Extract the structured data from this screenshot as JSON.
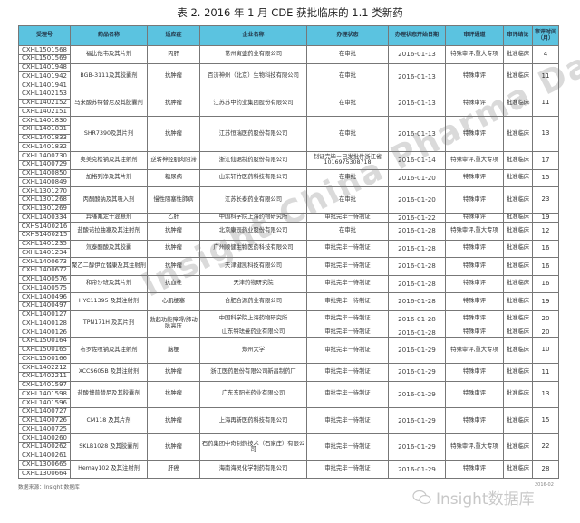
{
  "title": "表 2. 2016 年 1 月 CDE 获批临床的 1.1 类新药",
  "header_color": "#5bc3e0",
  "columns": [
    "受理号",
    "药品名称",
    "适应症",
    "企业名称",
    "办理状态",
    "办理状态开始日期",
    "审评通道",
    "审评结论",
    "审评时间（月）"
  ],
  "groups": [
    {
      "ids": [
        "CXHL1501568",
        "CXHL1501569"
      ],
      "drug": "福比他韦及其片剂",
      "indication": "丙肝",
      "companies": [
        {
          "name": "常州寅盛药业有限公司",
          "rows": 2,
          "status": "在审批",
          "date": "2016-01-13",
          "channel": "特殊审评,重大专项",
          "conclusion": "批准临床",
          "months": "4"
        }
      ]
    },
    {
      "ids": [
        "CXHL1401948",
        "CXHL1401942",
        "CXHL1401941"
      ],
      "drug": "BGB-3111及其胶囊剂",
      "indication": "抗肿瘤",
      "companies": [
        {
          "name": "百济神州（北京）生物科技有限公司",
          "rows": 3,
          "status": "在审批",
          "date": "2016-01-13",
          "channel": "特殊审评",
          "conclusion": "批准临床",
          "months": "11"
        }
      ]
    },
    {
      "ids": [
        "CXHL1402153",
        "CXHL1402152",
        "CXHL1402151"
      ],
      "drug": "马来酸苏特替尼及其胶囊剂",
      "indication": "抗肿瘤",
      "companies": [
        {
          "name": "江苏苏中药业集团股份有限公司",
          "rows": 3,
          "status": "在审批",
          "date": "2016-01-13",
          "channel": "特殊审评",
          "conclusion": "批准临床",
          "months": "11"
        }
      ]
    },
    {
      "ids": [
        "CXHL1401830",
        "CXHL1401831",
        "CXHL1401833",
        "CXHL1401832"
      ],
      "drug": "SHR7390及其片剂",
      "indication": "抗肿瘤",
      "companies": [
        {
          "name": "江苏恒瑞医药股份有限公司",
          "rows": 4,
          "status": "在审批",
          "date": "2016-01-13",
          "channel": "特殊审评",
          "conclusion": "批准临床",
          "months": "13"
        }
      ]
    },
    {
      "ids": [
        "CXHL1400730",
        "CXHL1400729"
      ],
      "drug": "奥美克松钠及其注射剂",
      "indication": "逆转神经肌肉阻滞",
      "companies": [
        {
          "name": "浙江仙琚制药股份有限公司",
          "rows": 2,
          "status": "制证完毕－已发批件浙江省1016975308718",
          "date": "2016-01-14",
          "channel": "特殊审评,重大专项",
          "conclusion": "批准临床",
          "months": "17"
        }
      ]
    },
    {
      "ids": [
        "CXHL1400850",
        "CXHL1400849"
      ],
      "drug": "加格列净及其片剂",
      "indication": "糖尿病",
      "companies": [
        {
          "name": "山东轩竹医药科技有限公司",
          "rows": 2,
          "status": "在审批",
          "date": "2016-01-20",
          "channel": "特殊审评",
          "conclusion": "批准临床",
          "months": "15"
        }
      ]
    },
    {
      "ids": [
        "CXHL1301270",
        "CXHL1301268",
        "CXHL1301269"
      ],
      "drug": "丙酮酸钠及其吸入剂",
      "indication": "慢性阻塞性肺病",
      "companies": [
        {
          "name": "江苏长泰药业有限公司",
          "rows": 3,
          "status": "在审批",
          "date": "2016-01-20",
          "channel": "特殊审评",
          "conclusion": "批准临床",
          "months": "23"
        }
      ]
    },
    {
      "ids": [
        "CXHL1400334"
      ],
      "drug": "异噻氟定干混悬剂",
      "indication": "乙肝",
      "companies": [
        {
          "name": "中国科学院上海药物研究所",
          "rows": 1,
          "status": "审批完毕－待制证",
          "date": "2016-01-22",
          "channel": "特殊审评",
          "conclusion": "批准临床",
          "months": "19"
        }
      ]
    },
    {
      "ids": [
        "CXHS1400216",
        "CXHS1400215"
      ],
      "drug": "盐酸诺拉曲塞及其注射剂",
      "indication": "抗肿瘤",
      "companies": [
        {
          "name": "北京康辰药业股份有限公司",
          "rows": 2,
          "status": "在审批",
          "date": "2016-01-28",
          "channel": "特殊审评,重大专项",
          "conclusion": "批准临床",
          "months": "12"
        }
      ]
    },
    {
      "ids": [
        "CXHL1401235",
        "CXHL1401234"
      ],
      "drug": "氘泰酮酸及其胶囊",
      "indication": "抗肿瘤",
      "companies": [
        {
          "name": "广州顺健生物医药科技有限公司",
          "rows": 2,
          "status": "审批完毕－待制证",
          "date": "2016-01-28",
          "channel": "特殊审评",
          "conclusion": "批准临床",
          "months": "16"
        }
      ]
    },
    {
      "ids": [
        "CXHL1400673",
        "CXHL1400672"
      ],
      "drug": "聚乙二醇伊立替康及其注射剂",
      "indication": "抗肿瘤",
      "companies": [
        {
          "name": "天津键凯科技有限公司",
          "rows": 2,
          "status": "审批完毕－待制证",
          "date": "2016-01-28",
          "channel": "特殊审评",
          "conclusion": "批准临床",
          "months": "16"
        }
      ]
    },
    {
      "ids": [
        "CXHL1400576",
        "CXHL1400575"
      ],
      "drug": "和帝沙班及其片剂",
      "indication": "抗血栓",
      "companies": [
        {
          "name": "天津药物研究院",
          "rows": 2,
          "status": "审批完毕－待制证",
          "date": "2016-01-28",
          "channel": "特殊审评",
          "conclusion": "批准临床",
          "months": "16"
        }
      ]
    },
    {
      "ids": [
        "CXHL1400496",
        "CXHL1400497"
      ],
      "drug": "HYC11395 及其注射剂",
      "indication": "心肌梗塞",
      "companies": [
        {
          "name": "合肥合源药业有限公司",
          "rows": 2,
          "status": "审批完毕－待制证",
          "date": "2016-01-28",
          "channel": "特殊审评",
          "conclusion": "批准临床",
          "months": "19"
        }
      ]
    },
    {
      "ids": [
        "CXHL1400127",
        "CXHL1400128",
        "CXHL1400126"
      ],
      "drug": "TPN171H 及其片剂",
      "indication": "勃起功能障碍/肺动脉高压",
      "companies": [
        {
          "name": "中国科学院上海药物研究所",
          "rows": 2,
          "status": "审批完毕－待制证",
          "date": "2016-01-28",
          "channel": "特殊审评",
          "conclusion": "批准临床",
          "months": "20"
        },
        {
          "name": "山东特珐曼药业有限公司",
          "rows": 1,
          "status": "审批完毕－待制证",
          "date": "2016-01-28",
          "channel": "特殊审评",
          "conclusion": "批准临床",
          "months": "20"
        }
      ]
    },
    {
      "ids": [
        "CXHL1500164",
        "CXHL1500165",
        "CXHL1500166"
      ],
      "drug": "布罗佐喷钠及其注射剂",
      "indication": "脑梗",
      "companies": [
        {
          "name": "郑州大学",
          "rows": 3,
          "status": "审批完毕－待制证",
          "date": "2016-01-29",
          "channel": "特殊审评,重大专项",
          "conclusion": "批准临床",
          "months": "10"
        }
      ]
    },
    {
      "ids": [
        "CXHL1402212",
        "CXHL1402211"
      ],
      "drug": "XCCS605B 及其注射剂",
      "indication": "抗肿瘤",
      "companies": [
        {
          "name": "浙江医药股份有限公司新昌制药厂",
          "rows": 2,
          "status": "审批完毕－待制证",
          "date": "2016-01-29",
          "channel": "特殊审评",
          "conclusion": "批准临床",
          "months": "11"
        }
      ]
    },
    {
      "ids": [
        "CXHL1401597",
        "CXHL1401598",
        "CXHL1401596"
      ],
      "drug": "盐酸博普替尼及其胶囊剂",
      "indication": "抗肿瘤",
      "companies": [
        {
          "name": "广东东阳光药业有限公司",
          "rows": 3,
          "status": "审批完毕－待制证",
          "date": "2016-01-29",
          "channel": "特殊审评",
          "conclusion": "批准临床",
          "months": "13"
        }
      ]
    },
    {
      "ids": [
        "CXHL1400727",
        "CXHL1400726",
        "CXHL1400725"
      ],
      "drug": "CM118 及其片剂",
      "indication": "抗肿瘤",
      "companies": [
        {
          "name": "上海再新医药科技有限公司",
          "rows": 3,
          "status": "审批完毕－待制证",
          "date": "2016-01-29",
          "channel": "特殊审评",
          "conclusion": "批准临床",
          "months": "15"
        }
      ]
    },
    {
      "ids": [
        "CXHL1400260",
        "CXHL1400262",
        "CXHL1400261"
      ],
      "drug": "SKLB1028 及其胶囊剂",
      "indication": "抗肿瘤",
      "companies": [
        {
          "name": "石药集团中奇制药技术（石家庄）有限公司",
          "rows": 3,
          "status": "审批完毕－待制证",
          "date": "2016-01-29",
          "channel": "特殊审评,重大专项",
          "conclusion": "批准临床",
          "months": "22"
        }
      ]
    },
    {
      "ids": [
        "CXHL1300665",
        "CXHL1300664"
      ],
      "drug": "Hemay102 及其注射剂",
      "indication": "肝癌",
      "companies": [
        {
          "name": "海南海灵化学制药有限公司",
          "rows": 2,
          "status": "审批完毕－待制证",
          "date": "2016-01-29",
          "channel": "特殊审评",
          "conclusion": "批准临床",
          "months": "28"
        }
      ]
    }
  ],
  "footer": {
    "source": "数据来源：Insight 数据库",
    "date_stamp": "2016-02",
    "logo_text": "Insight数据库"
  },
  "watermark": "Insight China Pharma Data"
}
